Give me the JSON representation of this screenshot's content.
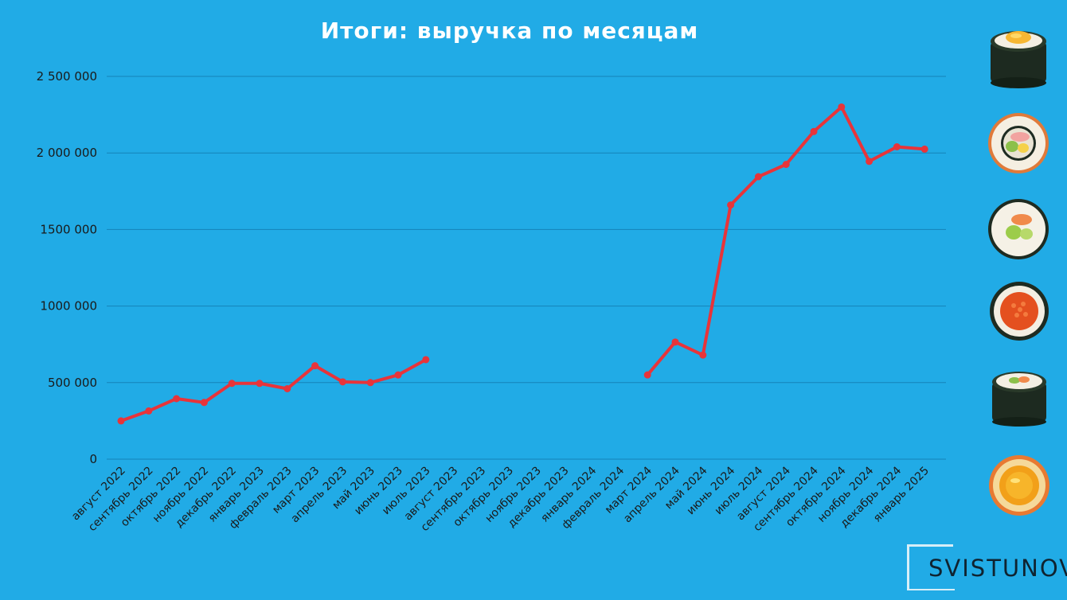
{
  "chart_data": {
    "type": "line",
    "title": "Итоги: выручка по месяцам",
    "ylim": [
      0,
      2500000
    ],
    "y_ticks": [
      "0",
      "500 000",
      "1000 000",
      "1500 000",
      "2 000 000",
      "2 500 000"
    ],
    "y_tick_values": [
      0,
      500000,
      1000000,
      1500000,
      2000000,
      2500000
    ],
    "grid": true,
    "categories": [
      "август 2022",
      "сентябрь 2022",
      "октябрь 2022",
      "ноябрь 2022",
      "декабрь 2022",
      "январь 2023",
      "февраль 2023",
      "март 2023",
      "апрель 2023",
      "май 2023",
      "июнь 2023",
      "июль 2023",
      "август 2023",
      "сентябрь 2023",
      "октябрь 2023",
      "ноябрь 2023",
      "декабрь 2023",
      "январь 2024",
      "февраль 2024",
      "март 2024",
      "апрель 2024",
      "май 2024",
      "июнь 2024",
      "июль 2024",
      "август 2024",
      "сентябрь 2024",
      "октябрь 2024",
      "ноябрь 2024",
      "декабрь 2024",
      "январь 2025"
    ],
    "series": [
      {
        "color": "#e8343a",
        "values": [
          250000,
          315000,
          395000,
          370000,
          495000,
          495000,
          460000,
          610000,
          505000,
          500000,
          550000,
          650000,
          null,
          null,
          null,
          null,
          null,
          null,
          null,
          550000,
          765000,
          680000,
          1660000,
          1845000,
          1925000,
          2140000,
          2300000,
          1945000,
          2040000,
          2025000
        ]
      }
    ]
  },
  "colors": {
    "background": "#21abe6",
    "line": "#e8343a",
    "grid": "#1583b8",
    "title": "#ffffff"
  },
  "decorations": [
    "sushi-roll-egg",
    "sushi-roll-crab",
    "sushi-roll-salmon-avocado",
    "sushi-roll-caviar",
    "sushi-roll-nori",
    "sushi-roll-egg-yolk"
  ],
  "logo": {
    "text": "SVISTUNOV"
  }
}
